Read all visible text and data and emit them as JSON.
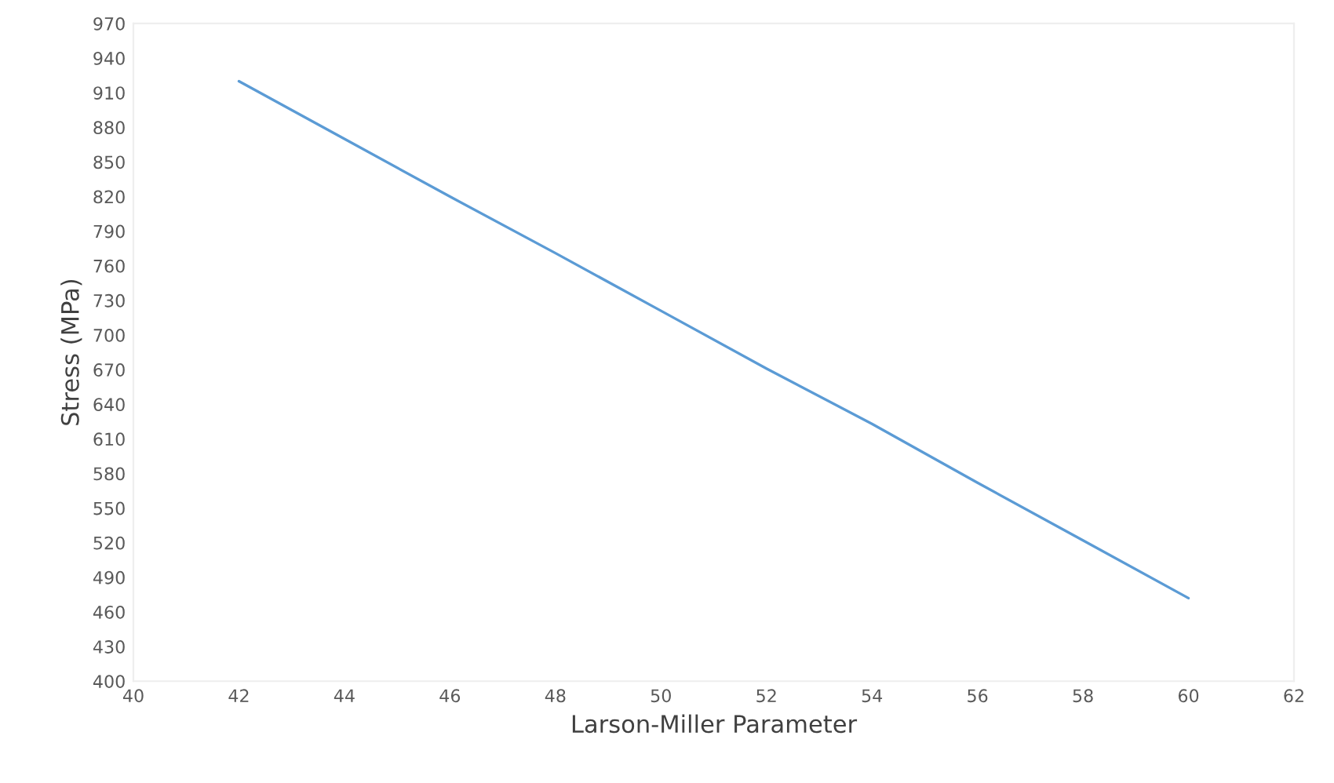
{
  "chart_data": {
    "type": "line",
    "xlabel": "Larson-Miller Parameter",
    "ylabel": "Stress (MPa)",
    "x": [
      42,
      44,
      46,
      48,
      50,
      52,
      54,
      56,
      58,
      60
    ],
    "series": [
      {
        "color": "#5b9bd5",
        "values": [
          920,
          870,
          820,
          771,
          721,
          671,
          623,
          572,
          522,
          472
        ]
      }
    ],
    "xlim": [
      40,
      62
    ],
    "xticks": [
      40,
      42,
      44,
      46,
      48,
      50,
      52,
      54,
      56,
      58,
      60,
      62
    ],
    "ylim": [
      400,
      970
    ],
    "yticks": [
      400,
      430,
      460,
      490,
      520,
      550,
      580,
      610,
      640,
      670,
      700,
      730,
      760,
      790,
      820,
      850,
      880,
      910,
      940,
      970
    ],
    "grid": false,
    "marker": "none",
    "line_style": "solid"
  }
}
